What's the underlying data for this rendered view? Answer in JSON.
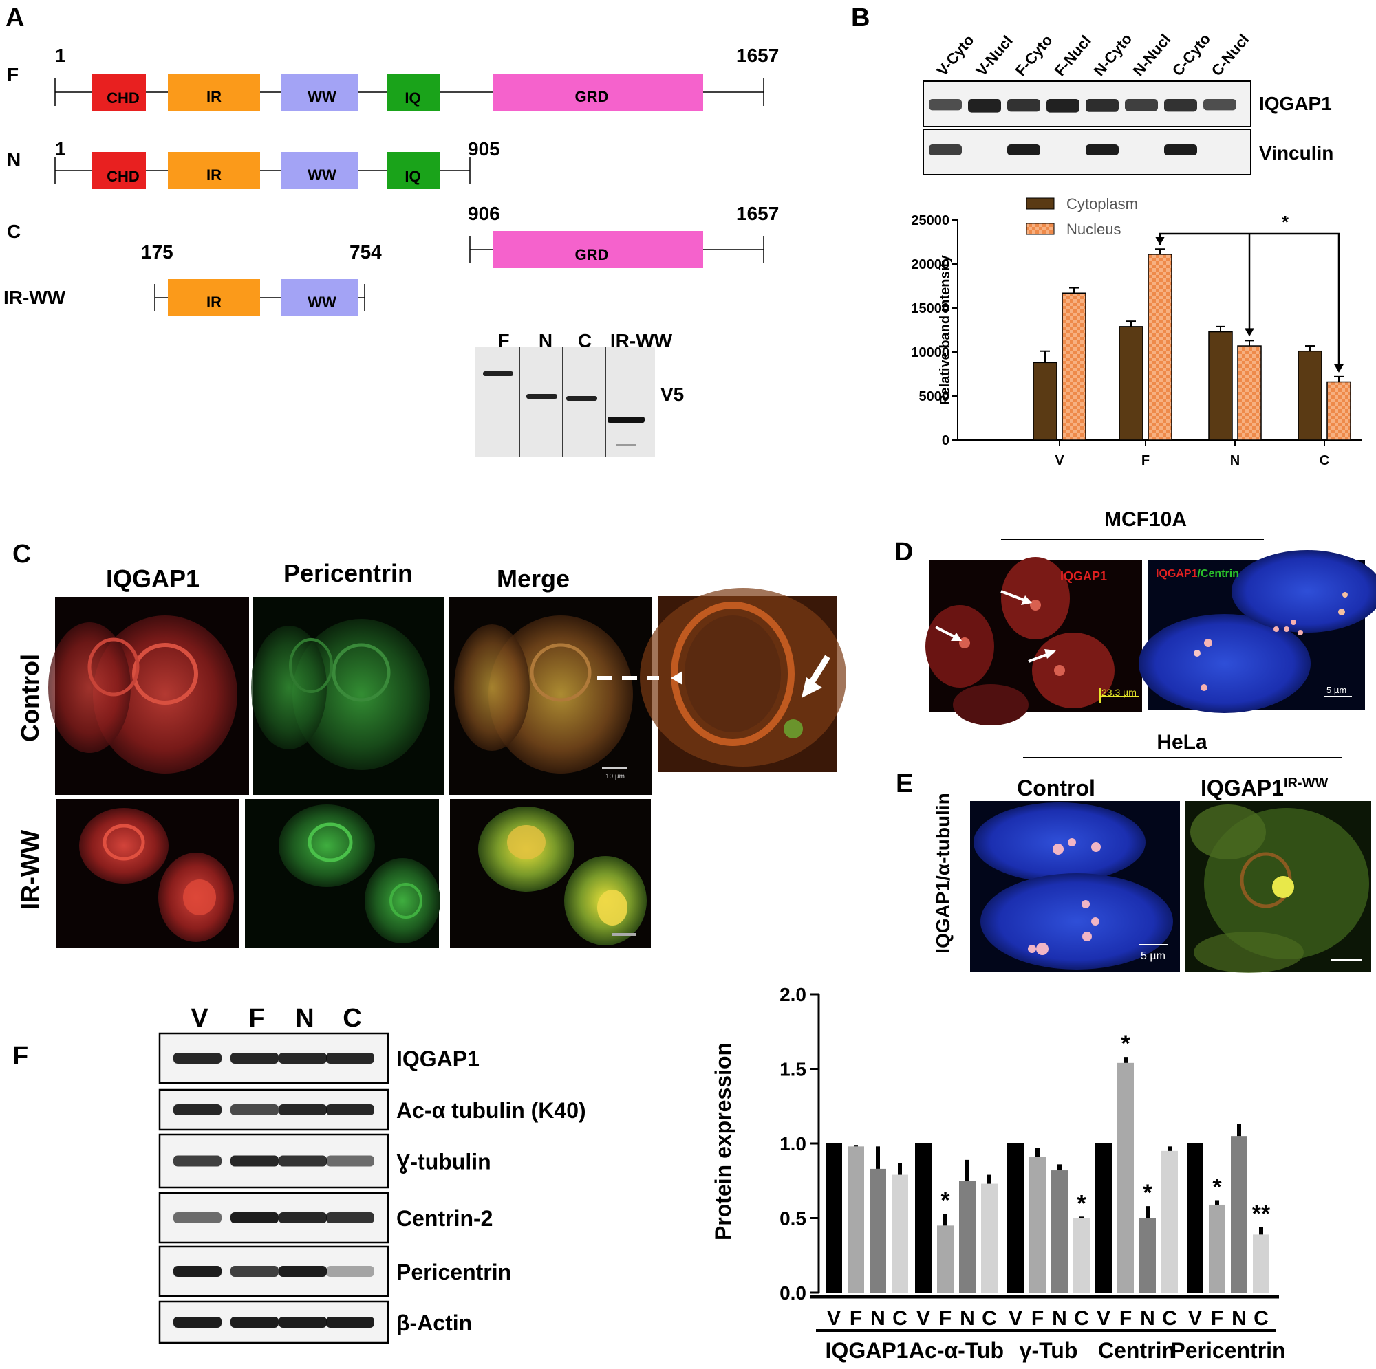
{
  "panels": {
    "A": "A",
    "B": "B",
    "C": "C",
    "D": "D",
    "E": "E",
    "F": "F"
  },
  "panelA": {
    "constructs": [
      {
        "name": "F",
        "start": "1",
        "end": "1657"
      },
      {
        "name": "N",
        "start": "1",
        "end": "905"
      },
      {
        "name": "C",
        "start": "906",
        "end": "1657"
      },
      {
        "name": "IR-WW",
        "start": "175",
        "end": "754"
      }
    ],
    "domains": {
      "chd": "CHD",
      "ir": "IR",
      "ww": "WW",
      "iq": "IQ",
      "grd": "GRD"
    },
    "blot": {
      "lanes": [
        "F",
        "N",
        "C",
        "IR-WW"
      ],
      "label": "V5"
    },
    "colors": {
      "chd": "#e82020",
      "ir": "#fb9a1a",
      "ww": "#a3a3f5",
      "iq": "#1aa31a",
      "grd": "#f562cc"
    }
  },
  "panelB": {
    "blot_lanes": [
      "V-Cyto",
      "V-Nucl",
      "F-Cyto",
      "F-Nucl",
      "N-Cyto",
      "N-Nucl",
      "C-Cyto",
      "C-Nucl"
    ],
    "blot_labels": [
      "IQGAP1",
      "Vinculin"
    ],
    "significance": "*"
  },
  "panelC": {
    "columns": [
      "IQGAP1",
      "Pericentrin",
      "Merge"
    ],
    "rows": [
      "Control",
      "IR-WW"
    ],
    "scale": "10 µm"
  },
  "panelD": {
    "header": "MCF10A",
    "channel_left": "IQGAP1",
    "channel_right_a": "IQGAP1",
    "channel_right_b": "/Centrin",
    "scale_left": "23.3 µm",
    "scale_right": "5 µm"
  },
  "panelE": {
    "header": "HeLa",
    "control": "Control",
    "ir_base": "IQGAP1",
    "ir_sup": "IR-WW",
    "ylabel": "IQGAP1/α-tubulin",
    "scale": "5 µm"
  },
  "panelF": {
    "lanes": [
      "V",
      "F",
      "N",
      "C"
    ],
    "blot_labels": [
      "IQGAP1",
      "Ac-α tubulin (K40)",
      "Ɣ-tubulin",
      "Centrin-2",
      "Pericentrin",
      "β-Actin"
    ]
  },
  "chart_data": [
    {
      "type": "bar",
      "categories": [
        "V",
        "F",
        "N",
        "C"
      ],
      "series": [
        {
          "name": "Cytoplasm",
          "values": [
            8800,
            12900,
            12300,
            10100
          ],
          "errors": [
            1300,
            600,
            600,
            600
          ]
        },
        {
          "name": "Nucleus",
          "values": [
            16700,
            21100,
            10700,
            6600
          ],
          "errors": [
            600,
            600,
            600,
            600
          ]
        }
      ],
      "ylabel": "Relative band intensity",
      "ylim": [
        0,
        25000
      ],
      "yticks": [
        0,
        5000,
        10000,
        15000,
        20000,
        25000
      ],
      "legend": "top-left",
      "significance": "*",
      "colors": {
        "Cytoplasm": "#5a3a14",
        "Nucleus": "#f4a06a"
      }
    },
    {
      "type": "bar",
      "groups": [
        "IQGAP1",
        "Ac-α-Tub",
        "γ-Tub",
        "Centrin",
        "Pericentrin"
      ],
      "categories": [
        "V",
        "F",
        "N",
        "C"
      ],
      "values": [
        [
          1.0,
          0.98,
          0.83,
          0.79
        ],
        [
          1.0,
          0.45,
          0.75,
          0.73
        ],
        [
          1.0,
          0.91,
          0.82,
          0.5
        ],
        [
          1.0,
          1.54,
          0.5,
          0.95
        ],
        [
          1.0,
          0.59,
          1.05,
          0.39
        ]
      ],
      "errors": [
        [
          0.0,
          0.01,
          0.15,
          0.08
        ],
        [
          0.0,
          0.08,
          0.14,
          0.06
        ],
        [
          0.0,
          0.06,
          0.04,
          0.01
        ],
        [
          0.0,
          0.04,
          0.08,
          0.03
        ],
        [
          0.0,
          0.03,
          0.08,
          0.05
        ]
      ],
      "stars": [
        [
          "",
          "",
          "",
          ""
        ],
        [
          "",
          "*",
          "",
          ""
        ],
        [
          "",
          "",
          "",
          "*"
        ],
        [
          "",
          "*",
          "*",
          ""
        ],
        [
          "",
          "*",
          "",
          "**"
        ]
      ],
      "ylabel": "Protein expression",
      "ylim": [
        0,
        2.0
      ],
      "yticks": [
        "0.0",
        "0.5",
        "1.0",
        "1.5",
        "2.0"
      ],
      "colors": [
        "#000000",
        "#a9a9a9",
        "#7f7f7f",
        "#d3d3d3"
      ]
    }
  ]
}
